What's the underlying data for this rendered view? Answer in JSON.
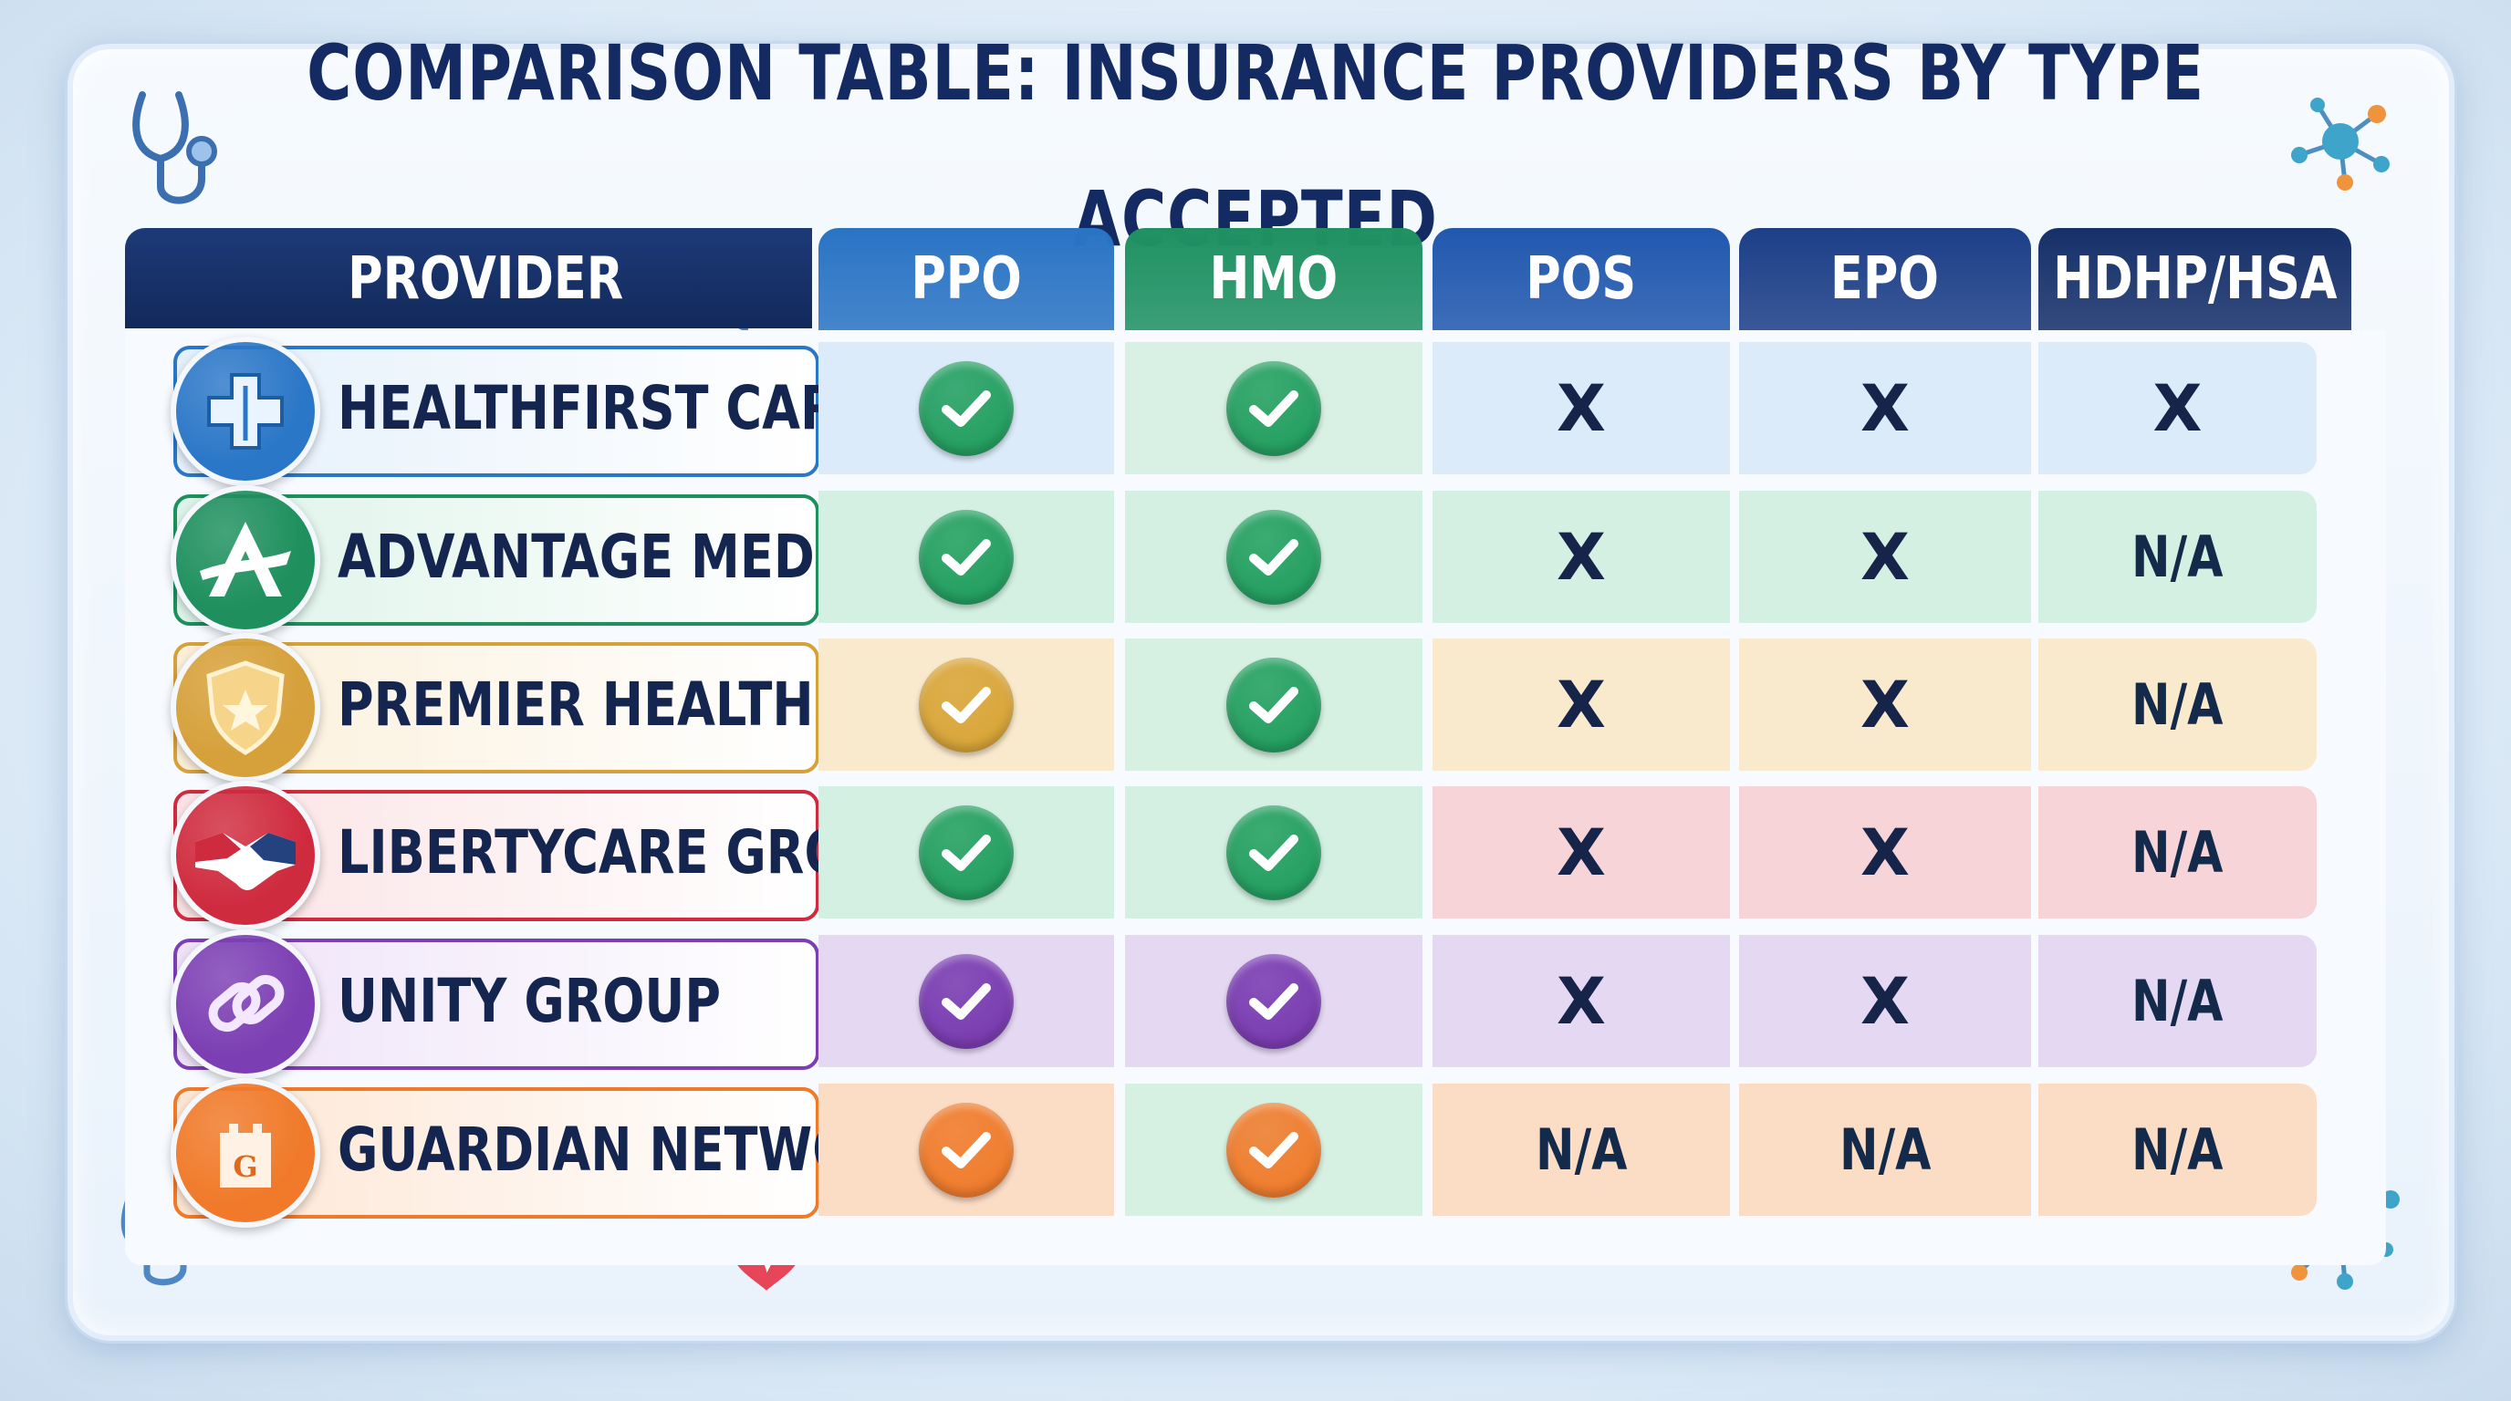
{
  "title": "COMPARISON TABLE: INSURANCE PROVIDERS BY TYPE ACCEPTED",
  "headers": {
    "provider": "PROVIDER",
    "columns": [
      "PPO",
      "HMO",
      "POS",
      "EPO",
      "HDHP/HSA"
    ]
  },
  "header_colors": [
    "#2a74c4",
    "#1f9162",
    "#2158ae",
    "#1d3f88",
    "#16306a"
  ],
  "rows": [
    {
      "name": "HEALTHFIRST CARE",
      "icon": "medical-cross-icon",
      "accent": "#2b77c7",
      "card": "#e4f0fb",
      "values": [
        "check",
        "check",
        "X",
        "X",
        "X"
      ],
      "check_colors": [
        "#25a061",
        "#25a061"
      ],
      "cell_colors": [
        "#dcebfa",
        "#d9f1e4",
        "#dcebfa",
        "#dcebfa",
        "#dcebfa"
      ]
    },
    {
      "name": "ADVANTAGE MEDICAL",
      "icon": "letter-a-icon",
      "accent": "#1e8f5d",
      "card": "#dcf3e8",
      "values": [
        "check",
        "check",
        "X",
        "X",
        "N/A"
      ],
      "check_colors": [
        "#25a061",
        "#25a061"
      ],
      "cell_colors": [
        "#d3f0e2",
        "#d3f0e2",
        "#d3f0e2",
        "#d3f0e2",
        "#d3f0e2"
      ]
    },
    {
      "name": "PREMIER HEALTH",
      "icon": "shield-star-icon",
      "accent": "#d6a03a",
      "card": "#fbefd9",
      "values": [
        "check",
        "check",
        "X",
        "X",
        "N/A"
      ],
      "check_colors": [
        "#d9a63a",
        "#25a061"
      ],
      "cell_colors": [
        "#f9e9cd",
        "#d6f0e1",
        "#f9e9cd",
        "#f9e9cd",
        "#f9e9cd"
      ]
    },
    {
      "name": "LIBERTYCARE GROUP",
      "icon": "handshake-icon",
      "accent": "#cf2b3e",
      "card": "#fbe2e4",
      "values": [
        "check",
        "check",
        "X",
        "X",
        "N/A"
      ],
      "check_colors": [
        "#25a061",
        "#25a061"
      ],
      "cell_colors": [
        "#d3f0e2",
        "#d3f0e2",
        "#f7d4d8",
        "#f7d4d8",
        "#f7d4d8"
      ]
    },
    {
      "name": "UNITY GROUP",
      "icon": "chain-link-icon",
      "accent": "#7c3fb3",
      "card": "#eee2f8",
      "values": [
        "check",
        "check",
        "X",
        "X",
        "N/A"
      ],
      "check_colors": [
        "#7a3db1",
        "#7a3db1"
      ],
      "cell_colors": [
        "#e5d8f3",
        "#e5d8f3",
        "#e5d8f3",
        "#e5d8f3",
        "#e5d8f3"
      ]
    },
    {
      "name": "GUARDIAN NETWORK",
      "icon": "castle-g-icon",
      "accent": "#f07a2a",
      "card": "#fde5d2",
      "values": [
        "check",
        "check",
        "N/A",
        "N/A",
        "N/A"
      ],
      "check_colors": [
        "#f07d2e",
        "#f07d2e"
      ],
      "cell_colors": [
        "#fbdcc5",
        "#d6f0e1",
        "#fbdcc5",
        "#fbdcc5",
        "#fbdcc5"
      ]
    }
  ]
}
